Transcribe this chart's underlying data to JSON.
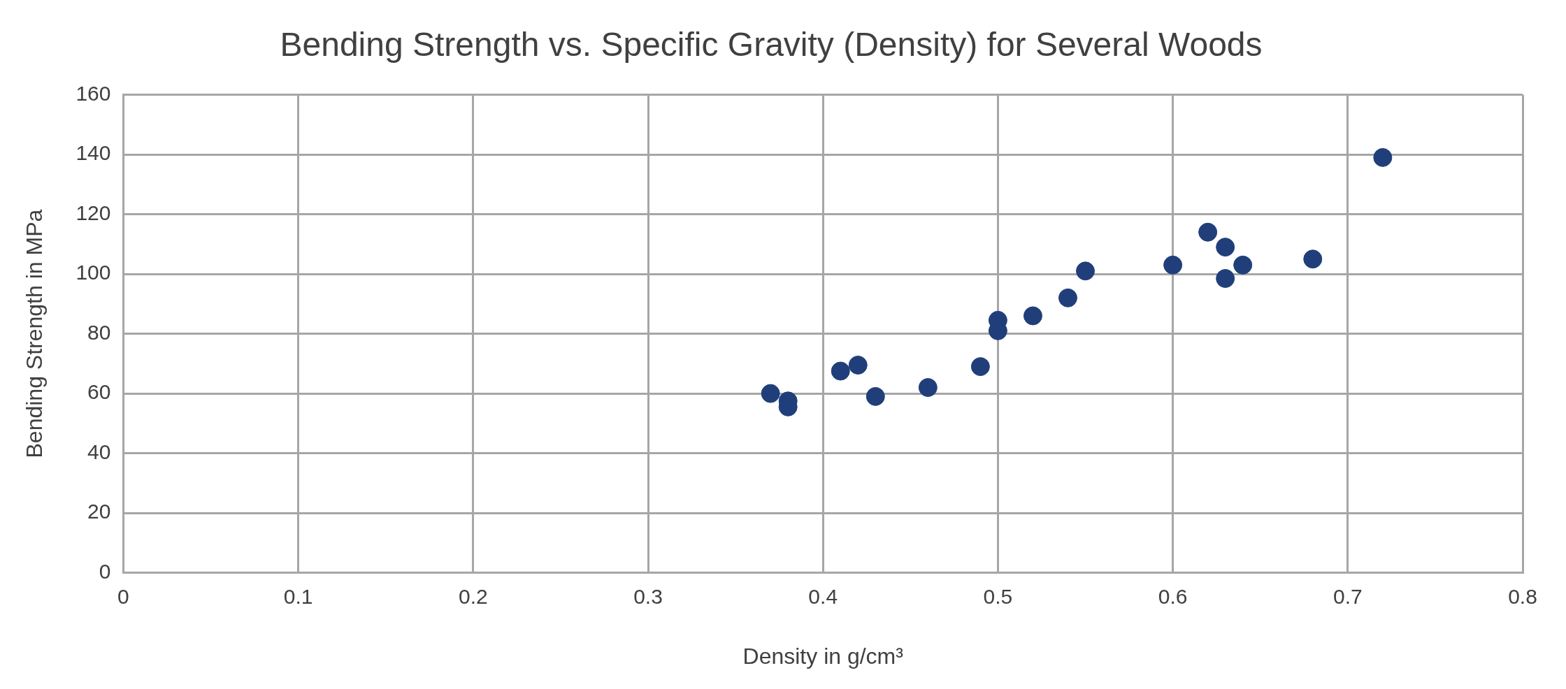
{
  "chart_data": {
    "type": "scatter",
    "title": "Bending Strength vs. Specific Gravity (Density) for Several Woods",
    "xlabel": "Density in g/cm³",
    "ylabel": "Bending Strength in MPa",
    "x": [
      0.37,
      0.38,
      0.38,
      0.41,
      0.42,
      0.43,
      0.46,
      0.49,
      0.5,
      0.5,
      0.52,
      0.54,
      0.55,
      0.6,
      0.62,
      0.63,
      0.63,
      0.64,
      0.68,
      0.72
    ],
    "series": [
      {
        "color": "#203f7a",
        "values": [
          60,
          57.5,
          55.5,
          67.5,
          69.5,
          59,
          62,
          69,
          84.5,
          81,
          86,
          92,
          101,
          103,
          114,
          109,
          98.5,
          103,
          105,
          139
        ]
      }
    ],
    "xlim": [
      0,
      0.8
    ],
    "xticks": [
      0,
      0.1,
      0.2,
      0.3,
      0.4,
      0.5,
      0.6,
      0.7,
      0.8
    ],
    "ylim": [
      0,
      160
    ],
    "yticks": [
      0,
      20,
      40,
      60,
      80,
      100,
      120,
      140,
      160
    ],
    "grid": true,
    "legend": false,
    "marker": "circle"
  }
}
